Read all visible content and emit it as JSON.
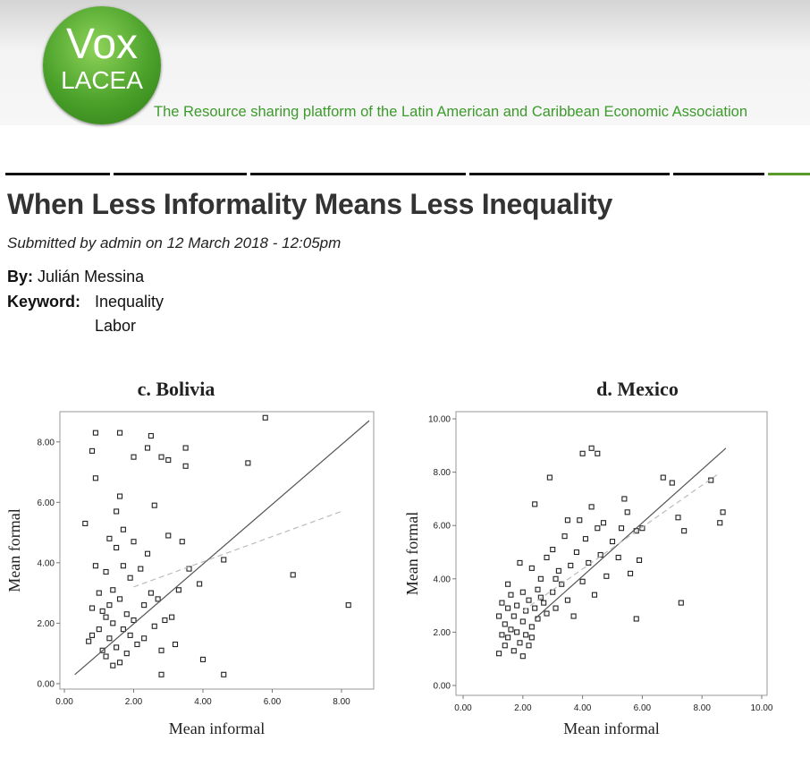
{
  "header": {
    "logo_top": "Vox",
    "logo_bottom": "LACEA",
    "tagline": "The Resource sharing platform of the Latin American and Caribbean Economic Association"
  },
  "article": {
    "title": "When Less Informality Means Less Inequality",
    "submitted": "Submitted by admin on 12 March 2018 - 12:05pm",
    "by_label": "By:",
    "by": "Julián Messina",
    "keyword_label": "Keyword:",
    "keywords": [
      "Inequality",
      "Labor"
    ]
  },
  "chart_data": [
    {
      "type": "scatter",
      "title": "c. Bolivia",
      "x_label": "Mean informal",
      "y_label": "Mean formal",
      "xlim": [
        -0.13,
        8.93
      ],
      "ylim": [
        -0.18,
        9.0
      ],
      "xticks": [
        {
          "value": 0,
          "label": "0.00"
        },
        {
          "value": 2,
          "label": "2.00"
        },
        {
          "value": 4,
          "label": "4.00"
        },
        {
          "value": 6,
          "label": "6.00"
        },
        {
          "value": 8,
          "label": "8.00"
        }
      ],
      "yticks": [
        {
          "value": 0,
          "label": "0.00"
        },
        {
          "value": 2,
          "label": "2.00"
        },
        {
          "value": 4,
          "label": "4.00"
        },
        {
          "value": 6,
          "label": "6.00"
        },
        {
          "value": 8,
          "label": "8.00"
        }
      ],
      "series": [
        {
          "marker": "square",
          "color": "#222222",
          "x": [
            0.6,
            0.7,
            0.8,
            0.8,
            0.8,
            0.9,
            0.9,
            0.9,
            1.0,
            1.0,
            1.1,
            1.1,
            1.2,
            1.2,
            1.2,
            1.3,
            1.3,
            1.3,
            1.4,
            1.4,
            1.4,
            1.5,
            1.5,
            1.5,
            1.6,
            1.6,
            1.6,
            1.6,
            1.7,
            1.7,
            1.7,
            1.8,
            1.8,
            1.9,
            1.9,
            2.0,
            2.0,
            2.0,
            2.1,
            2.2,
            2.3,
            2.3,
            2.4,
            2.4,
            2.5,
            2.5,
            2.6,
            2.6,
            2.7,
            2.8,
            2.8,
            2.8,
            2.9,
            3.0,
            3.0,
            3.1,
            3.2,
            3.3,
            3.4,
            3.5,
            3.5,
            3.6,
            3.9,
            4.0,
            4.6,
            4.6,
            5.3,
            5.8,
            6.6,
            8.2
          ],
          "y": [
            5.3,
            1.4,
            1.6,
            2.5,
            7.7,
            8.3,
            6.8,
            3.9,
            3.0,
            1.8,
            2.4,
            1.1,
            2.2,
            0.9,
            3.7,
            2.6,
            1.5,
            4.8,
            0.6,
            2.0,
            3.1,
            5.7,
            1.2,
            4.5,
            8.3,
            6.2,
            2.8,
            0.7,
            1.8,
            3.9,
            5.1,
            2.3,
            1.0,
            1.6,
            3.5,
            7.5,
            4.7,
            2.1,
            1.3,
            3.8,
            2.6,
            1.5,
            7.8,
            4.3,
            8.2,
            3.0,
            1.9,
            5.9,
            2.8,
            7.5,
            1.1,
            0.3,
            2.1,
            7.4,
            4.9,
            2.2,
            1.3,
            3.1,
            4.7,
            7.8,
            7.2,
            3.8,
            3.3,
            0.8,
            4.1,
            0.3,
            7.3,
            8.8,
            3.6,
            2.6
          ]
        },
        {
          "line": "solid",
          "color": "#555555",
          "x": [
            0.3,
            8.8
          ],
          "y": [
            0.3,
            8.7
          ]
        },
        {
          "line": "dashed",
          "color": "#bbbbbb",
          "x": [
            2.0,
            8.0
          ],
          "y": [
            3.2,
            5.7
          ]
        }
      ]
    },
    {
      "type": "scatter",
      "title": "d. Mexico",
      "x_label": "Mean informal",
      "y_label": "Mean formal",
      "xlim": [
        -0.24,
        10.18
      ],
      "ylim": [
        -0.37,
        10.27
      ],
      "xticks": [
        {
          "value": 0,
          "label": "0.00"
        },
        {
          "value": 2,
          "label": "2.00"
        },
        {
          "value": 4,
          "label": "4.00"
        },
        {
          "value": 6,
          "label": "6.00"
        },
        {
          "value": 8,
          "label": "8.00"
        },
        {
          "value": 10,
          "label": "10.00"
        }
      ],
      "yticks": [
        {
          "value": 0,
          "label": "0.00"
        },
        {
          "value": 2,
          "label": "2.00"
        },
        {
          "value": 4,
          "label": "4.00"
        },
        {
          "value": 6,
          "label": "6.00"
        },
        {
          "value": 8,
          "label": "8.00"
        },
        {
          "value": 10,
          "label": "10.00"
        }
      ],
      "series": [
        {
          "marker": "square",
          "color": "#222222",
          "x": [
            1.2,
            1.2,
            1.3,
            1.3,
            1.4,
            1.4,
            1.5,
            1.5,
            1.6,
            1.6,
            1.7,
            1.7,
            1.8,
            1.8,
            1.9,
            1.9,
            2.0,
            2.0,
            2.1,
            2.1,
            2.2,
            2.2,
            2.3,
            2.3,
            2.4,
            2.4,
            2.5,
            2.5,
            2.6,
            2.7,
            2.8,
            2.8,
            2.9,
            3.0,
            3.0,
            3.1,
            3.2,
            3.3,
            3.4,
            3.5,
            3.5,
            3.6,
            3.7,
            3.8,
            3.9,
            4.0,
            4.0,
            4.1,
            4.2,
            4.3,
            4.3,
            4.4,
            4.5,
            4.5,
            4.6,
            4.7,
            4.8,
            5.0,
            5.2,
            5.3,
            5.4,
            5.5,
            5.6,
            5.8,
            5.8,
            5.9,
            6.0,
            6.7,
            7.0,
            7.2,
            7.3,
            7.4,
            8.3,
            8.6,
            8.7,
            2.0,
            1.5,
            2.6,
            3.1,
            2.3
          ],
          "y": [
            1.2,
            2.6,
            1.9,
            3.1,
            1.5,
            2.3,
            2.9,
            1.8,
            2.1,
            3.4,
            1.3,
            2.6,
            2.0,
            3.0,
            1.6,
            4.6,
            2.4,
            3.5,
            1.9,
            2.8,
            3.2,
            1.5,
            4.4,
            2.2,
            6.8,
            2.9,
            3.6,
            2.5,
            4.0,
            3.1,
            2.7,
            4.8,
            7.8,
            3.5,
            5.1,
            2.9,
            4.3,
            3.8,
            5.6,
            6.2,
            3.2,
            4.5,
            2.6,
            5.0,
            6.2,
            3.9,
            8.7,
            5.5,
            4.6,
            8.9,
            6.7,
            3.4,
            8.7,
            5.9,
            4.9,
            6.1,
            4.1,
            5.4,
            4.8,
            5.9,
            7.0,
            6.5,
            4.2,
            5.8,
            2.5,
            4.7,
            5.9,
            7.8,
            7.6,
            6.3,
            3.1,
            5.8,
            7.7,
            6.1,
            6.5,
            1.1,
            3.8,
            3.3,
            4.0,
            1.8
          ]
        },
        {
          "line": "solid",
          "color": "#555555",
          "x": [
            2.4,
            8.8
          ],
          "y": [
            2.5,
            8.9
          ]
        },
        {
          "line": "dashed",
          "color": "#bbbbbb",
          "x": [
            2.0,
            8.5
          ],
          "y": [
            2.8,
            7.9
          ]
        }
      ]
    }
  ]
}
